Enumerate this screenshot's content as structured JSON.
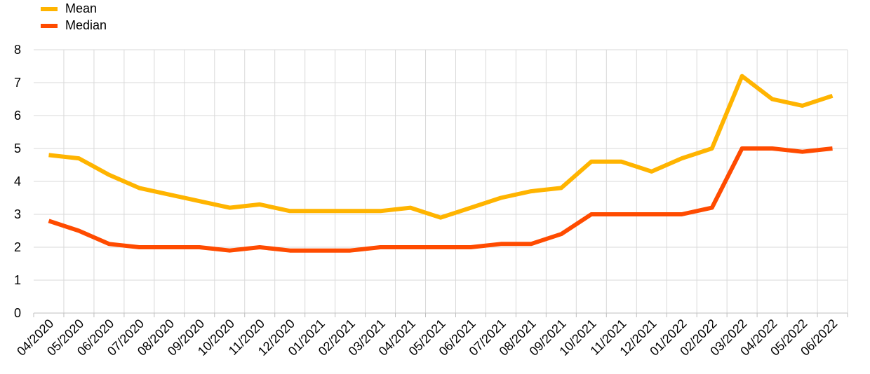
{
  "chart_data": {
    "type": "line",
    "title": "",
    "xlabel": "",
    "ylabel": "",
    "categories": [
      "04/2020",
      "05/2020",
      "06/2020",
      "07/2020",
      "08/2020",
      "09/2020",
      "10/2020",
      "11/2020",
      "12/2020",
      "01/2021",
      "02/2021",
      "03/2021",
      "04/2021",
      "05/2021",
      "06/2021",
      "07/2021",
      "08/2021",
      "09/2021",
      "10/2021",
      "11/2021",
      "12/2021",
      "01/2022",
      "02/2022",
      "03/2022",
      "04/2022",
      "05/2022",
      "06/2022"
    ],
    "ylim": [
      0,
      8
    ],
    "yticks": [
      "0",
      "1",
      "2",
      "3",
      "4",
      "5",
      "6",
      "7",
      "8"
    ],
    "grid": true,
    "legend_position": "top-left",
    "series": [
      {
        "name": "Mean",
        "color": "#FFB400",
        "values": [
          4.8,
          4.7,
          4.2,
          3.8,
          3.6,
          3.4,
          3.2,
          3.3,
          3.1,
          3.1,
          3.1,
          3.1,
          3.2,
          2.9,
          3.2,
          3.5,
          3.7,
          3.8,
          4.6,
          4.6,
          4.3,
          4.7,
          5.0,
          7.2,
          6.5,
          6.3,
          6.6
        ]
      },
      {
        "name": "Median",
        "color": "#FF4B00",
        "values": [
          2.8,
          2.5,
          2.1,
          2.0,
          2.0,
          2.0,
          1.9,
          2.0,
          1.9,
          1.9,
          1.9,
          2.0,
          2.0,
          2.0,
          2.0,
          2.1,
          2.1,
          2.4,
          3.0,
          3.0,
          3.0,
          3.0,
          3.2,
          5.0,
          5.0,
          4.9,
          5.0
        ]
      }
    ]
  }
}
